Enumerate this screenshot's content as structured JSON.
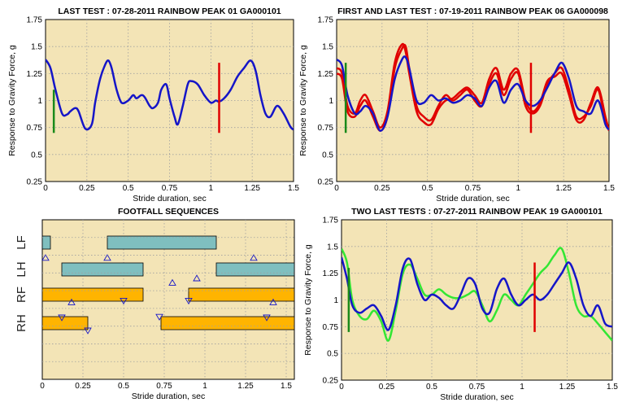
{
  "chart_data": [
    {
      "id": "p1",
      "type": "line",
      "title": "LAST TEST : 07-28-2011 RAINBOW PEAK 01 GA000101",
      "xlabel": "Stride duration, sec",
      "ylabel": "Response to Gravity Force, g",
      "xlim": [
        0,
        1.5
      ],
      "ylim": [
        0.25,
        1.75
      ],
      "xticks": [
        "0",
        "0.25",
        "0.5",
        "0.75",
        "1",
        "1.25",
        "1.5"
      ],
      "yticks": [
        "0.25",
        "0.5",
        "0.75",
        "1",
        "1.25",
        "1.5",
        "1.75"
      ],
      "grid": true,
      "markers": [
        {
          "x": 0.05,
          "y_from": 0.7,
          "y_to": 1.1,
          "color": "#1a8a1a"
        },
        {
          "x": 1.05,
          "y_from": 0.7,
          "y_to": 1.35,
          "color": "#e00000"
        }
      ],
      "series": [
        {
          "color": "#1515c8",
          "width": 2.5,
          "x": [
            0,
            0.03,
            0.06,
            0.1,
            0.13,
            0.15,
            0.18,
            0.2,
            0.24,
            0.28,
            0.3,
            0.33,
            0.36,
            0.38,
            0.4,
            0.43,
            0.46,
            0.5,
            0.53,
            0.55,
            0.58,
            0.6,
            0.63,
            0.65,
            0.68,
            0.7,
            0.73,
            0.75,
            0.78,
            0.8,
            0.83,
            0.86,
            0.88,
            0.92,
            0.96,
            1.0,
            1.03,
            1.05,
            1.08,
            1.12,
            1.16,
            1.2,
            1.24,
            1.27,
            1.3,
            1.33,
            1.36,
            1.4,
            1.44,
            1.48,
            1.5
          ],
          "y": [
            1.38,
            1.3,
            1.1,
            0.88,
            0.87,
            0.9,
            0.93,
            0.9,
            0.74,
            0.78,
            0.98,
            1.2,
            1.33,
            1.37,
            1.3,
            1.1,
            0.98,
            1.0,
            1.05,
            1.02,
            1.05,
            1.03,
            0.95,
            0.93,
            0.98,
            1.1,
            1.15,
            1.02,
            0.85,
            0.78,
            0.95,
            1.15,
            1.18,
            1.15,
            1.05,
            0.98,
            1.0,
            0.99,
            1.02,
            1.1,
            1.22,
            1.3,
            1.37,
            1.28,
            1.05,
            0.88,
            0.85,
            0.95,
            0.88,
            0.76,
            0.73
          ]
        }
      ]
    },
    {
      "id": "p2",
      "type": "line",
      "title": "FIRST AND LAST TEST : 07-19-2011 RAINBOW PEAK 06 GA000098",
      "xlabel": "Stride duration, sec",
      "ylabel": "Response to Gravity Force, g",
      "xlim": [
        0,
        1.5
      ],
      "ylim": [
        0.25,
        1.75
      ],
      "xticks": [
        "0",
        "0.25",
        "0.5",
        "0.75",
        "1",
        "1.25",
        "1.5"
      ],
      "yticks": [
        "0.25",
        "0.5",
        "0.75",
        "1",
        "1.25",
        "1.5",
        "1.75"
      ],
      "grid": true,
      "markers": [
        {
          "x": 0.05,
          "y_from": 0.7,
          "y_to": 1.35,
          "color": "#1a8a1a"
        },
        {
          "x": 1.07,
          "y_from": 0.7,
          "y_to": 1.35,
          "color": "#e00000"
        }
      ],
      "series": [
        {
          "color": "#e00000",
          "width": 2.5,
          "x": [
            0,
            0.03,
            0.06,
            0.1,
            0.13,
            0.16,
            0.2,
            0.24,
            0.28,
            0.32,
            0.36,
            0.38,
            0.4,
            0.44,
            0.48,
            0.52,
            0.56,
            0.6,
            0.64,
            0.68,
            0.72,
            0.76,
            0.8,
            0.84,
            0.88,
            0.92,
            0.96,
            1.0,
            1.04,
            1.08,
            1.12,
            1.16,
            1.2,
            1.24,
            1.28,
            1.32,
            1.36,
            1.4,
            1.44,
            1.48,
            1.5
          ],
          "y": [
            1.25,
            1.2,
            0.9,
            0.85,
            0.95,
            1.0,
            0.85,
            0.72,
            0.85,
            1.3,
            1.48,
            1.5,
            1.3,
            0.95,
            0.85,
            0.82,
            0.95,
            1.05,
            1.0,
            1.05,
            1.1,
            1.0,
            0.95,
            1.15,
            1.25,
            1.05,
            1.2,
            1.25,
            0.95,
            0.88,
            0.95,
            1.15,
            1.25,
            1.3,
            1.1,
            0.85,
            0.85,
            0.95,
            1.1,
            0.8,
            0.73
          ]
        },
        {
          "color": "#e00000",
          "width": 2.5,
          "x": [
            0,
            0.03,
            0.06,
            0.1,
            0.13,
            0.16,
            0.2,
            0.24,
            0.28,
            0.32,
            0.36,
            0.38,
            0.4,
            0.44,
            0.48,
            0.52,
            0.56,
            0.6,
            0.64,
            0.68,
            0.72,
            0.76,
            0.8,
            0.84,
            0.88,
            0.92,
            0.96,
            1.0,
            1.04,
            1.08,
            1.12,
            1.16,
            1.2,
            1.24,
            1.28,
            1.32,
            1.36,
            1.4,
            1.44,
            1.48,
            1.5
          ],
          "y": [
            1.3,
            1.25,
            0.95,
            0.88,
            1.0,
            1.05,
            0.9,
            0.75,
            0.9,
            1.35,
            1.52,
            1.45,
            1.25,
            0.9,
            0.8,
            0.78,
            0.92,
            1.0,
            1.02,
            1.08,
            1.12,
            1.05,
            0.98,
            1.2,
            1.3,
            1.1,
            1.25,
            1.28,
            1.0,
            0.9,
            0.98,
            1.18,
            1.22,
            1.25,
            1.05,
            0.82,
            0.82,
            0.98,
            1.12,
            0.85,
            0.72
          ]
        },
        {
          "color": "#1515c8",
          "width": 2.5,
          "x": [
            0,
            0.03,
            0.06,
            0.1,
            0.13,
            0.16,
            0.2,
            0.24,
            0.28,
            0.32,
            0.36,
            0.38,
            0.4,
            0.44,
            0.48,
            0.52,
            0.56,
            0.6,
            0.64,
            0.68,
            0.72,
            0.76,
            0.8,
            0.84,
            0.88,
            0.92,
            0.96,
            1.0,
            1.04,
            1.08,
            1.12,
            1.16,
            1.2,
            1.24,
            1.28,
            1.32,
            1.36,
            1.4,
            1.44,
            1.48,
            1.5
          ],
          "y": [
            1.38,
            1.32,
            1.05,
            0.88,
            0.9,
            0.95,
            0.88,
            0.72,
            0.85,
            1.2,
            1.38,
            1.4,
            1.3,
            1.0,
            0.98,
            1.05,
            1.0,
            1.02,
            0.98,
            1.0,
            1.05,
            1.02,
            0.95,
            1.12,
            1.18,
            0.98,
            1.1,
            1.15,
            1.0,
            0.95,
            1.0,
            1.12,
            1.25,
            1.35,
            1.2,
            0.95,
            0.9,
            0.88,
            1.0,
            0.78,
            0.73
          ]
        }
      ]
    },
    {
      "id": "p3",
      "type": "other",
      "title": "FOOTFALL SEQUENCES",
      "xlabel": "Stride duration, sec",
      "xlim": [
        0,
        1.55
      ],
      "xticks": [
        "0",
        "0.25",
        "0.5",
        "0.75",
        "1",
        "1.25",
        "1.5"
      ],
      "grid": true,
      "rows": [
        "LF",
        "LH",
        "RF",
        "RH"
      ],
      "bars": [
        {
          "row": "LF",
          "start": 0.0,
          "end": 0.05,
          "color": "#7fbfbf"
        },
        {
          "row": "LF",
          "start": 0.4,
          "end": 1.07,
          "color": "#7fbfbf"
        },
        {
          "row": "LH",
          "start": 0.12,
          "end": 0.62,
          "color": "#7fbfbf"
        },
        {
          "row": "LH",
          "start": 1.07,
          "end": 1.55,
          "color": "#7fbfbf"
        },
        {
          "row": "RF",
          "start": 0.0,
          "end": 0.62,
          "color": "#ffb400"
        },
        {
          "row": "RF",
          "start": 0.9,
          "end": 1.55,
          "color": "#ffb400"
        },
        {
          "row": "RH",
          "start": 0.0,
          "end": 0.28,
          "color": "#ffb400"
        },
        {
          "row": "RH",
          "start": 0.73,
          "end": 1.55,
          "color": "#ffb400"
        }
      ],
      "triangles": [
        {
          "x": 0.02,
          "row": "LH",
          "dir": "up"
        },
        {
          "x": 0.4,
          "row": "LH",
          "dir": "up"
        },
        {
          "x": 1.3,
          "row": "LH",
          "dir": "up"
        },
        {
          "x": 0.95,
          "row": "LH",
          "dir": "up",
          "offset": 0.7
        },
        {
          "x": 0.8,
          "row": "RF",
          "dir": "up",
          "offset": -0.9
        },
        {
          "x": 0.18,
          "row": "RF",
          "dir": "up",
          "offset": 0.6
        },
        {
          "x": 0.9,
          "row": "RF",
          "dir": "down",
          "offset": 0.45
        },
        {
          "x": 1.42,
          "row": "RF",
          "dir": "up",
          "offset": 0.6
        },
        {
          "x": 0.12,
          "row": "RH",
          "dir": "down",
          "offset": -0.45
        },
        {
          "x": 0.5,
          "row": "RF",
          "dir": "down",
          "offset": 0.45
        },
        {
          "x": 0.72,
          "row": "RH",
          "dir": "down",
          "offset": -0.5
        },
        {
          "x": 1.38,
          "row": "RH",
          "dir": "down",
          "offset": -0.45
        },
        {
          "x": 0.28,
          "row": "RH",
          "dir": "down",
          "offset": 0.55
        }
      ]
    },
    {
      "id": "p4",
      "type": "line",
      "title": "TWO LAST TESTS : 07-27-2011 RAINBOW PEAK 19 GA000101",
      "xlabel": "Stride duration, sec",
      "ylabel": "Response to Gravity Force, g",
      "xlim": [
        0,
        1.5
      ],
      "ylim": [
        0.25,
        1.75
      ],
      "xticks": [
        "0",
        "0.25",
        "0.5",
        "0.75",
        "1",
        "1.25",
        "1.5"
      ],
      "yticks": [
        "0.25",
        "0.5",
        "0.75",
        "1",
        "1.25",
        "1.5",
        "1.75"
      ],
      "grid": true,
      "markers": [
        {
          "x": 0.04,
          "y_from": 0.7,
          "y_to": 1.3,
          "color": "#1a8a1a"
        },
        {
          "x": 1.07,
          "y_from": 0.7,
          "y_to": 1.35,
          "color": "#e00000"
        }
      ],
      "series": [
        {
          "color": "#33e633",
          "width": 2.5,
          "x": [
            0,
            0.03,
            0.06,
            0.1,
            0.14,
            0.18,
            0.22,
            0.26,
            0.3,
            0.34,
            0.38,
            0.42,
            0.46,
            0.5,
            0.54,
            0.58,
            0.62,
            0.66,
            0.7,
            0.74,
            0.78,
            0.82,
            0.86,
            0.9,
            0.94,
            0.98,
            1.02,
            1.06,
            1.1,
            1.14,
            1.18,
            1.22,
            1.26,
            1.3,
            1.34,
            1.38,
            1.42,
            1.46,
            1.5
          ],
          "y": [
            1.48,
            1.35,
            1.0,
            0.85,
            0.82,
            0.9,
            0.8,
            0.62,
            0.9,
            1.25,
            1.33,
            1.2,
            1.05,
            1.05,
            1.1,
            1.05,
            1.02,
            1.02,
            1.05,
            1.08,
            0.95,
            0.8,
            0.9,
            1.05,
            1.0,
            0.95,
            1.05,
            1.15,
            1.25,
            1.32,
            1.42,
            1.48,
            1.25,
            0.95,
            0.85,
            0.85,
            0.78,
            0.7,
            0.62
          ]
        },
        {
          "color": "#1515c8",
          "width": 2.5,
          "x": [
            0,
            0.03,
            0.06,
            0.1,
            0.14,
            0.18,
            0.22,
            0.26,
            0.3,
            0.34,
            0.38,
            0.42,
            0.46,
            0.5,
            0.54,
            0.58,
            0.62,
            0.66,
            0.7,
            0.74,
            0.78,
            0.82,
            0.86,
            0.9,
            0.94,
            0.98,
            1.02,
            1.06,
            1.1,
            1.14,
            1.18,
            1.22,
            1.26,
            1.3,
            1.34,
            1.38,
            1.42,
            1.46,
            1.5
          ],
          "y": [
            1.4,
            1.2,
            0.95,
            0.88,
            0.92,
            0.95,
            0.85,
            0.72,
            0.95,
            1.3,
            1.38,
            1.15,
            1.0,
            1.05,
            1.02,
            0.95,
            0.92,
            1.05,
            1.2,
            1.15,
            0.92,
            0.88,
            1.1,
            1.2,
            1.05,
            0.95,
            1.0,
            1.05,
            1.0,
            1.05,
            1.15,
            1.25,
            1.35,
            1.2,
            0.95,
            0.85,
            0.95,
            0.78,
            0.75
          ]
        }
      ]
    }
  ]
}
